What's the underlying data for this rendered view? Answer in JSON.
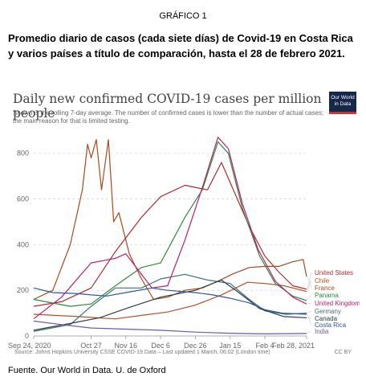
{
  "document": {
    "label": "GRÁFICO 1",
    "caption": "Promedio diario de casos (cada siete días) de Covid-19 en Costa Rica y varios países a título de comparación, hasta el 28 de febrero 2021.",
    "footer": "Fuente. Our World in Data. U. de Oxford"
  },
  "logo": {
    "line1": "Our World",
    "line2": "in Data",
    "colors": {
      "background": "#16284a",
      "accent": "#c83333"
    }
  },
  "chart_data": {
    "type": "line",
    "title": "Daily new confirmed COVID-19 cases per million people",
    "subtitle": "Shown is the rolling 7-day average. The number of confirmed cases is lower than the number of actual cases; the main reason for that is limited testing.",
    "x_ticks": [
      "Sep 24, 2020",
      "Oct 27",
      "Nov 16",
      "Dec 6",
      "Dec 26",
      "Jan 15",
      "Feb 4",
      "Feb 28, 2021"
    ],
    "x_range": [
      "2020-09-24",
      "2021-02-28"
    ],
    "y_ticks": [
      "0",
      "200",
      "400",
      "600",
      "800"
    ],
    "ylim": [
      0,
      880
    ],
    "grid": "horizontal dashed",
    "legend_placement": "right, at line ends",
    "source": "Source: Johns Hopkins University CSSE COVID-19 Data – Last updated 1 March, 06:02 (London time)",
    "license": "CC BY",
    "series": [
      {
        "name": "United States",
        "color": "#b02c2c",
        "points": [
          [
            "2020-09-24",
            130
          ],
          [
            "2020-10-10",
            150
          ],
          [
            "2020-10-27",
            210
          ],
          [
            "2020-11-10",
            370
          ],
          [
            "2020-11-25",
            520
          ],
          [
            "2020-12-06",
            610
          ],
          [
            "2020-12-20",
            660
          ],
          [
            "2021-01-02",
            640
          ],
          [
            "2021-01-10",
            760
          ],
          [
            "2021-01-18",
            620
          ],
          [
            "2021-01-26",
            480
          ],
          [
            "2021-02-04",
            350
          ],
          [
            "2021-02-12",
            280
          ],
          [
            "2021-02-20",
            220
          ],
          [
            "2021-02-28",
            205
          ]
        ]
      },
      {
        "name": "Chile",
        "color": "#b8502a",
        "points": [
          [
            "2020-09-24",
            95
          ],
          [
            "2020-10-20",
            85
          ],
          [
            "2020-11-10",
            75
          ],
          [
            "2020-11-25",
            90
          ],
          [
            "2020-12-10",
            105
          ],
          [
            "2020-12-26",
            135
          ],
          [
            "2021-01-10",
            180
          ],
          [
            "2021-01-25",
            235
          ],
          [
            "2021-02-04",
            230
          ],
          [
            "2021-02-15",
            220
          ],
          [
            "2021-02-28",
            195
          ]
        ]
      },
      {
        "name": "France",
        "color": "#a84a1a",
        "points": [
          [
            "2020-09-24",
            160
          ],
          [
            "2020-10-05",
            200
          ],
          [
            "2020-10-15",
            400
          ],
          [
            "2020-10-22",
            640
          ],
          [
            "2020-10-25",
            840
          ],
          [
            "2020-10-27",
            780
          ],
          [
            "2020-10-30",
            860
          ],
          [
            "2020-11-02",
            640
          ],
          [
            "2020-11-06",
            860
          ],
          [
            "2020-11-09",
            500
          ],
          [
            "2020-11-12",
            540
          ],
          [
            "2020-11-18",
            360
          ],
          [
            "2020-11-25",
            250
          ],
          [
            "2020-12-02",
            160
          ],
          [
            "2020-12-10",
            170
          ],
          [
            "2020-12-20",
            200
          ],
          [
            "2020-12-30",
            210
          ],
          [
            "2021-01-08",
            240
          ],
          [
            "2021-01-16",
            270
          ],
          [
            "2021-01-26",
            300
          ],
          [
            "2021-02-04",
            305
          ],
          [
            "2021-02-12",
            305
          ],
          [
            "2021-02-20",
            325
          ],
          [
            "2021-02-26",
            335
          ],
          [
            "2021-02-28",
            260
          ]
        ]
      },
      {
        "name": "Panama",
        "color": "#2c8a3e",
        "points": [
          [
            "2020-09-24",
            160
          ],
          [
            "2020-10-15",
            130
          ],
          [
            "2020-10-27",
            140
          ],
          [
            "2020-11-10",
            220
          ],
          [
            "2020-11-25",
            300
          ],
          [
            "2020-12-06",
            320
          ],
          [
            "2020-12-20",
            520
          ],
          [
            "2020-12-30",
            640
          ],
          [
            "2021-01-08",
            850
          ],
          [
            "2021-01-14",
            800
          ],
          [
            "2021-01-22",
            560
          ],
          [
            "2021-02-01",
            350
          ],
          [
            "2021-02-10",
            230
          ],
          [
            "2021-02-20",
            175
          ],
          [
            "2021-02-28",
            155
          ]
        ]
      },
      {
        "name": "United Kingdom",
        "color": "#c01e6e",
        "points": [
          [
            "2020-09-24",
            75
          ],
          [
            "2020-10-10",
            170
          ],
          [
            "2020-10-27",
            320
          ],
          [
            "2020-11-10",
            340
          ],
          [
            "2020-11-16",
            360
          ],
          [
            "2020-12-01",
            210
          ],
          [
            "2020-12-10",
            220
          ],
          [
            "2020-12-20",
            420
          ],
          [
            "2020-12-30",
            650
          ],
          [
            "2021-01-08",
            870
          ],
          [
            "2021-01-14",
            820
          ],
          [
            "2021-01-22",
            580
          ],
          [
            "2021-01-31",
            380
          ],
          [
            "2021-02-10",
            240
          ],
          [
            "2021-02-20",
            170
          ],
          [
            "2021-02-28",
            140
          ]
        ]
      },
      {
        "name": "Germany",
        "color": "#3f6e7a",
        "points": [
          [
            "2020-09-24",
            20
          ],
          [
            "2020-10-15",
            50
          ],
          [
            "2020-10-27",
            130
          ],
          [
            "2020-11-10",
            210
          ],
          [
            "2020-11-25",
            210
          ],
          [
            "2020-12-06",
            250
          ],
          [
            "2020-12-20",
            270
          ],
          [
            "2021-01-02",
            245
          ],
          [
            "2021-01-15",
            230
          ],
          [
            "2021-01-26",
            160
          ],
          [
            "2021-02-04",
            110
          ],
          [
            "2021-02-16",
            95
          ],
          [
            "2021-02-28",
            100
          ]
        ]
      },
      {
        "name": "Canada",
        "color": "#2f3d48",
        "points": [
          [
            "2020-09-24",
            25
          ],
          [
            "2020-10-15",
            55
          ],
          [
            "2020-11-01",
            80
          ],
          [
            "2020-11-16",
            120
          ],
          [
            "2020-12-06",
            170
          ],
          [
            "2020-12-26",
            200
          ],
          [
            "2021-01-10",
            245
          ],
          [
            "2021-01-20",
            190
          ],
          [
            "2021-02-01",
            120
          ],
          [
            "2021-02-15",
            85
          ],
          [
            "2021-02-28",
            80
          ]
        ]
      },
      {
        "name": "Costa Rica",
        "color": "#33549c",
        "points": [
          [
            "2020-09-24",
            210
          ],
          [
            "2020-10-05",
            190
          ],
          [
            "2020-10-20",
            185
          ],
          [
            "2020-10-27",
            180
          ],
          [
            "2020-11-05",
            175
          ],
          [
            "2020-11-16",
            190
          ],
          [
            "2020-12-01",
            210
          ],
          [
            "2020-12-10",
            200
          ],
          [
            "2020-12-26",
            190
          ],
          [
            "2021-01-05",
            180
          ],
          [
            "2021-01-15",
            165
          ],
          [
            "2021-01-26",
            145
          ],
          [
            "2021-02-04",
            115
          ],
          [
            "2021-02-14",
            100
          ],
          [
            "2021-02-28",
            95
          ]
        ]
      },
      {
        "name": "India",
        "color": "#6a5aa8",
        "points": [
          [
            "2020-09-24",
            65
          ],
          [
            "2020-10-10",
            50
          ],
          [
            "2020-10-27",
            35
          ],
          [
            "2020-11-16",
            30
          ],
          [
            "2020-12-06",
            25
          ],
          [
            "2020-12-26",
            17
          ],
          [
            "2021-01-15",
            12
          ],
          [
            "2021-02-04",
            9
          ],
          [
            "2021-02-28",
            11
          ]
        ]
      }
    ]
  }
}
